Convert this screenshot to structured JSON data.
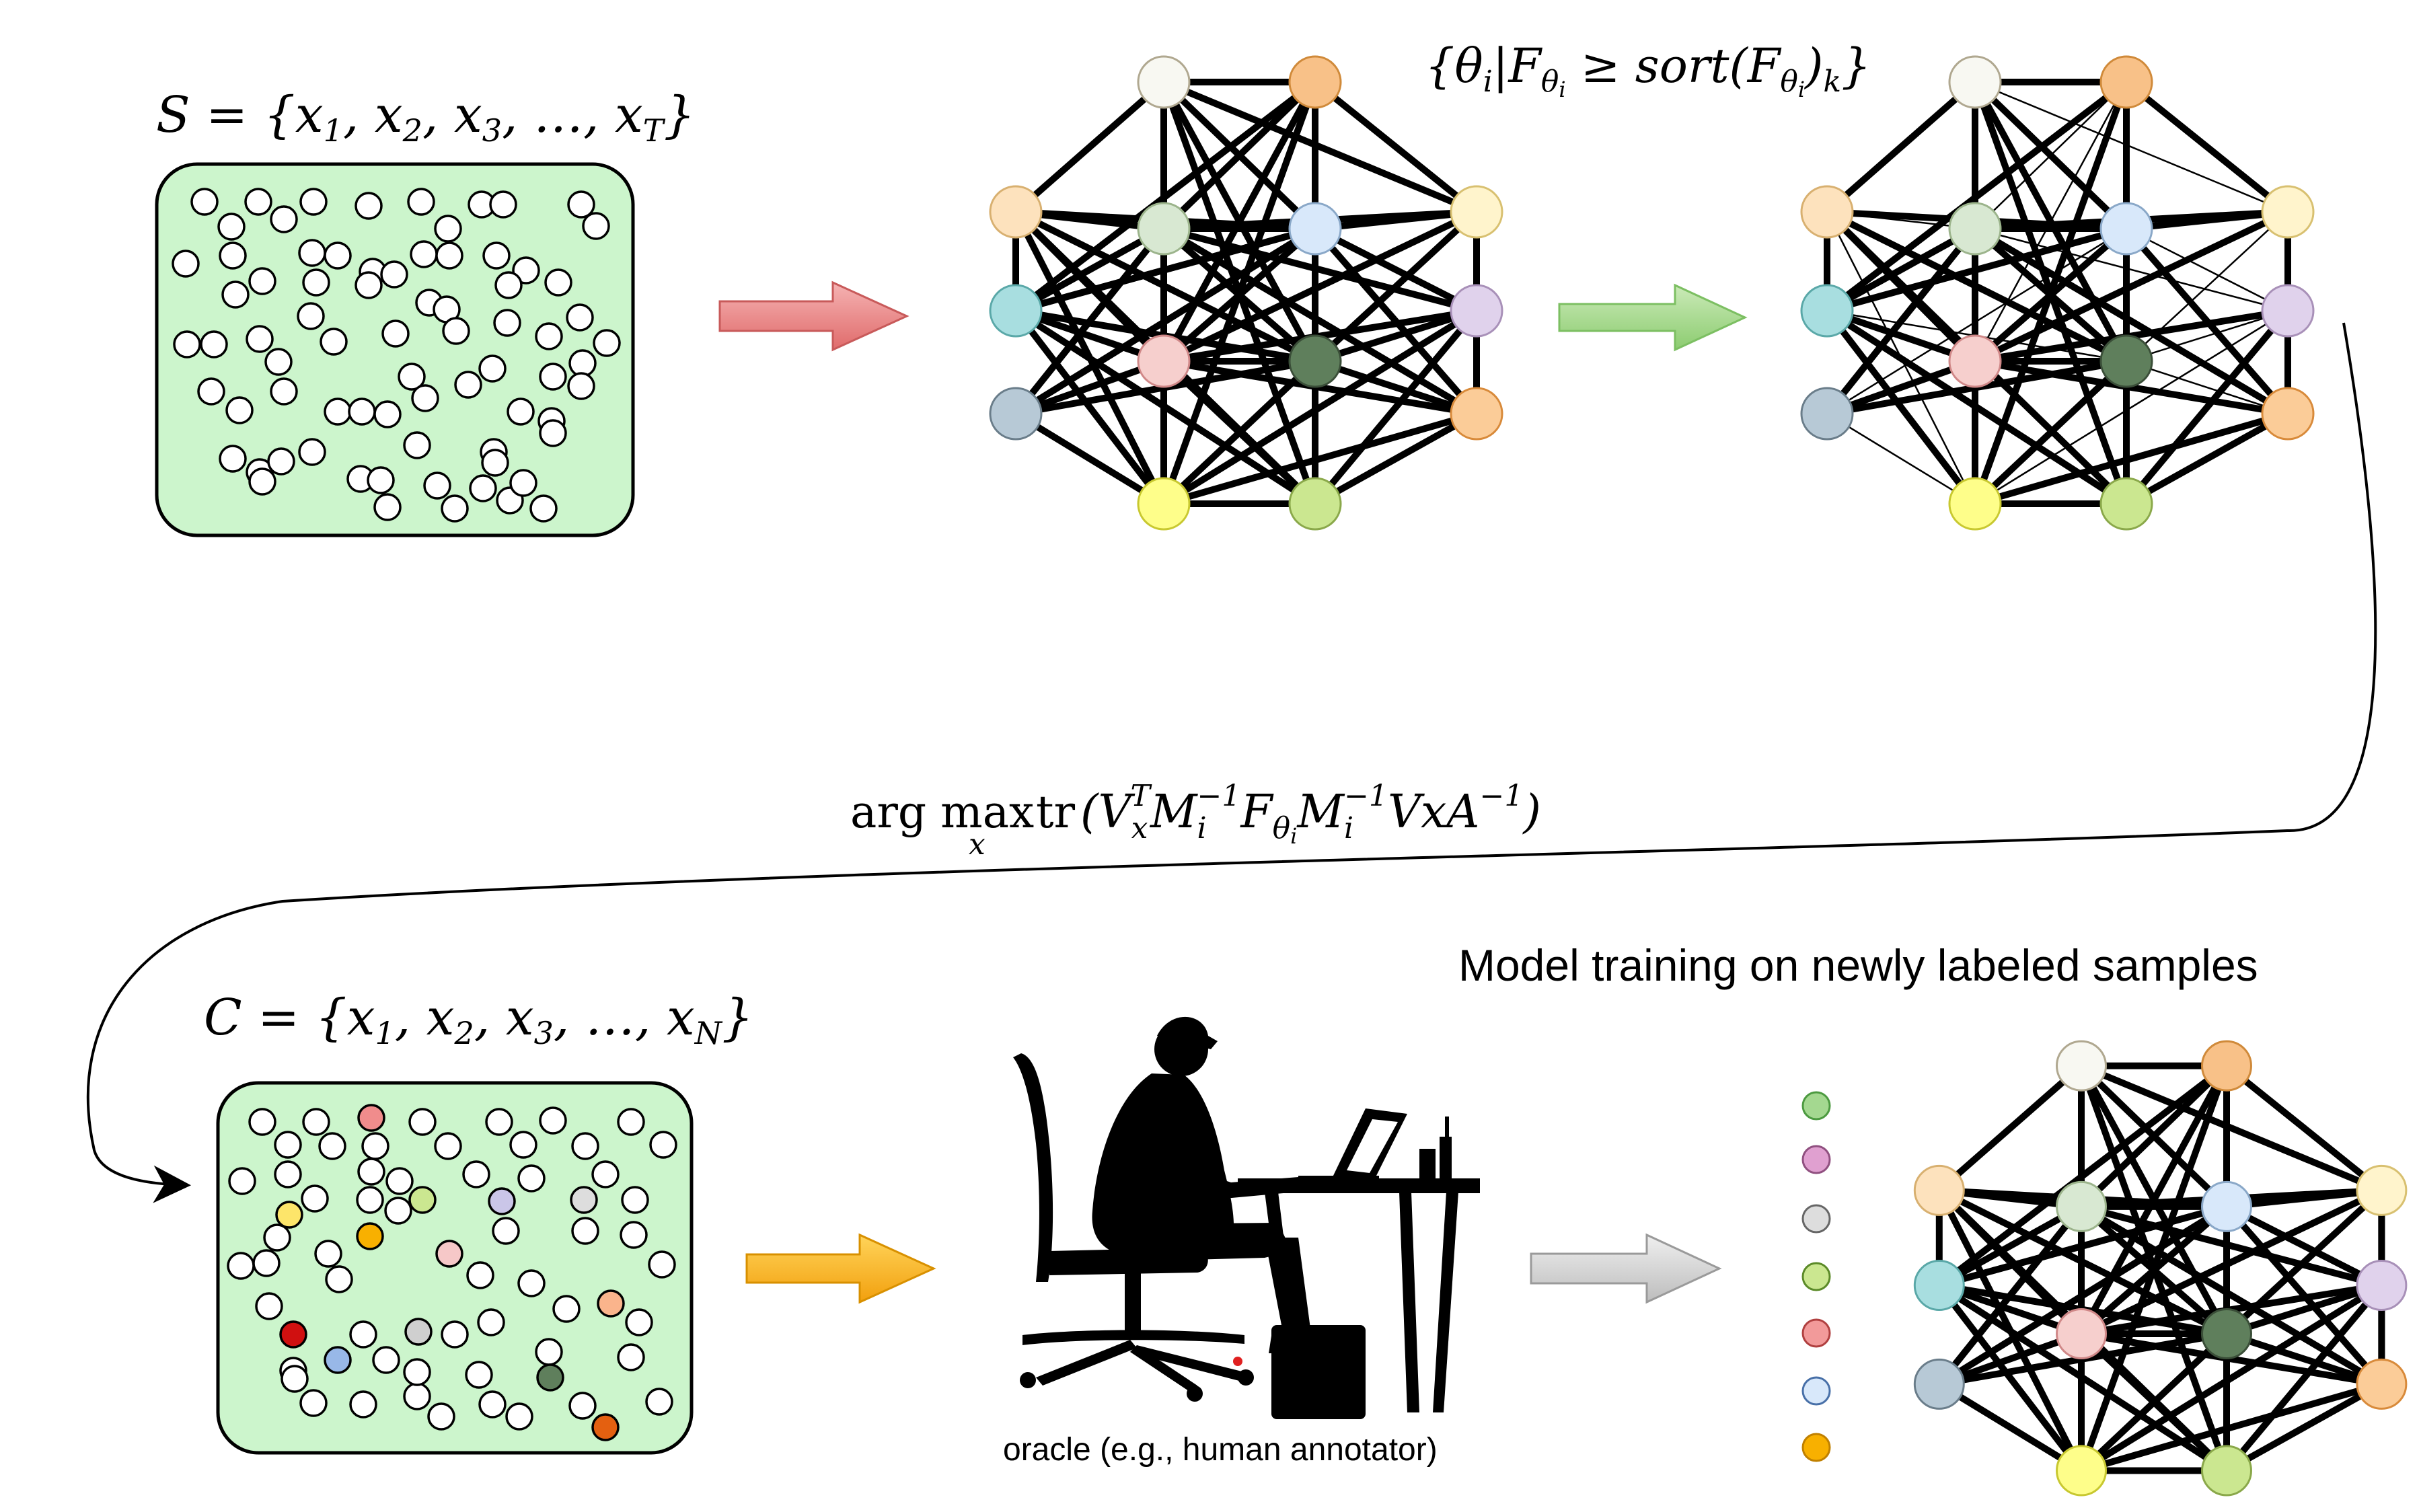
{
  "labels": {
    "set_s": "S = {x₁, x₂, x₃, …, x_T}",
    "set_s_parts": {
      "lhs": "S = {x",
      "s1": "1",
      "sep1": ", x",
      "s2": "2",
      "sep2": ", x",
      "s3": "3",
      "sep3": ", …, x",
      "sT": "T",
      "rhs": "}"
    },
    "selection_rule": "{θᵢ | F_θᵢ ≥ sort(F_θᵢ)ₖ}",
    "selection_parts": {
      "open": "{θ",
      "i1": "i",
      "bar": "|F",
      "th1": "θ",
      "ii1": "i",
      "ge": " ≥ sort(F",
      "th2": "θ",
      "ii2": "i",
      "close": ")",
      "k": "k",
      "end": "}"
    },
    "objective": "arg max_x tr (V_x^T M_i^{-1} F_θi M_i^{-1} V x A^{-1})",
    "objective_parts": {
      "argmax": "arg max",
      "sub_x": "x",
      "tr": "tr",
      "body": "(V",
      "vx": "x",
      "vT": "T",
      "M1": "M",
      "mi1": "i",
      "minv1": "−1",
      "F": "F",
      "fth": "θ",
      "fi": "i",
      "M2": "M",
      "mi2": "i",
      "minv2": "−1",
      "tail": "VxA",
      "ainv": "−1",
      "close": ")"
    },
    "set_c": "C = {x₁, x₂, x₃, …, x_N}",
    "set_c_parts": {
      "lhs": "C = {x",
      "s1": "1",
      "sep1": ", x",
      "s2": "2",
      "sep2": ", x",
      "s3": "3",
      "sep3": ", …, x",
      "sN": "N",
      "rhs": "}"
    },
    "training_caption": "Model training on newly labeled samples",
    "oracle_caption": "oracle (e.g., human annotator)"
  },
  "colors": {
    "pool_fill": "#ccf5cc",
    "arrow_red": "#ea8585",
    "arrow_green": "#a8d890",
    "arrow_orange": "#f7b120",
    "arrow_gray": "#cfcfcf",
    "node_palette": [
      "#f8f8f2",
      "#f8c188",
      "#fde2bd",
      "#d8e8d2",
      "#d8e8fa",
      "#fff4cc",
      "#a8dee0",
      "#e0d2ec",
      "#f6cfcd",
      "#5f7f5c",
      "#b7c9d6",
      "#fbcc98",
      "#fefe8a",
      "#cbe790"
    ]
  },
  "icons": {
    "pool_s": "unlabeled-pool",
    "pool_c": "candidate-pool",
    "oracle": "human-annotator-silhouette",
    "networks": [
      "neural-network",
      "pruned-neural-network",
      "retrained-neural-network"
    ]
  }
}
